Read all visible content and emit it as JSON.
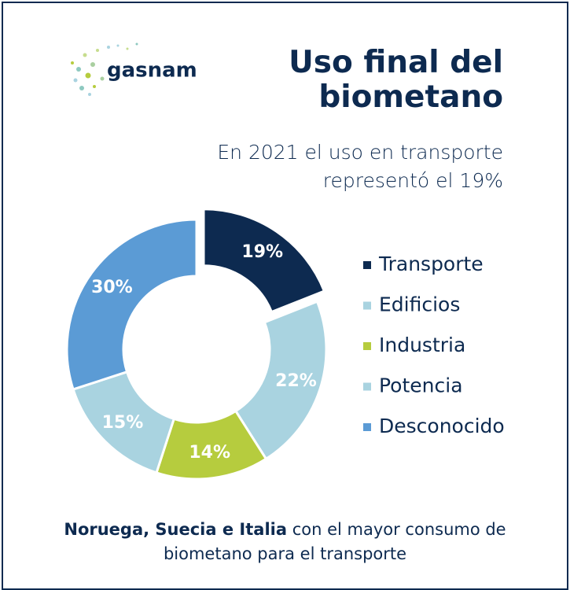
{
  "logo": {
    "text": "gasnam"
  },
  "chart_data": {
    "type": "donut",
    "title": "Uso final del biometano",
    "subtitle": "En 2021 el uso en transporte representó el 19%",
    "categories": [
      "Transporte",
      "Edificios",
      "Industria",
      "Potencia",
      "Desconocido"
    ],
    "values": [
      19,
      22,
      14,
      15,
      30
    ],
    "value_labels": [
      "19%",
      "22%",
      "14%",
      "15%",
      "30%"
    ],
    "colors": [
      "#0d2a50",
      "#a9d3e0",
      "#b6cc3e",
      "#a9d3e0",
      "#5b9bd5"
    ],
    "legend": "right"
  },
  "footer": {
    "bold": "Noruega, Suecia e Italia",
    "text": "con el mayor consumo de biometano para el transporte"
  }
}
